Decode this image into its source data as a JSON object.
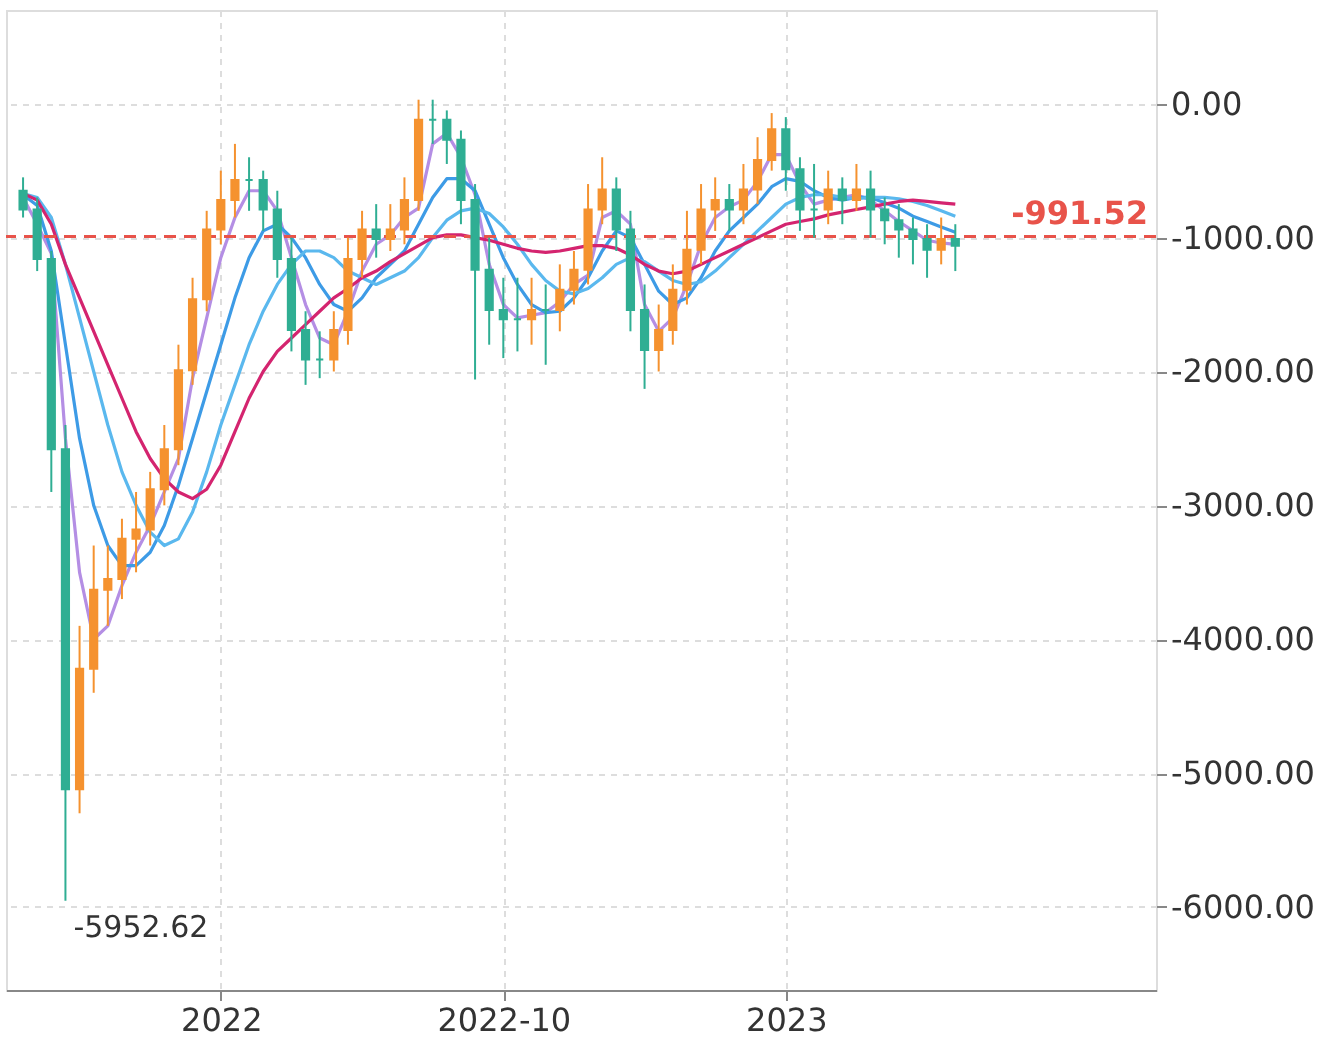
{
  "chart_data": {
    "type": "candlestick",
    "categories": [
      null,
      null,
      null,
      null,
      null,
      null,
      null,
      null,
      null,
      null,
      null,
      null,
      null,
      null,
      "2022",
      null,
      null,
      null,
      null,
      null,
      null,
      null,
      null,
      null,
      null,
      null,
      null,
      null,
      null,
      null,
      null,
      null,
      null,
      null,
      "2022-10",
      null,
      null,
      null,
      null,
      null,
      null,
      null,
      null,
      null,
      null,
      null,
      null,
      null,
      null,
      null,
      null,
      null,
      null,
      null,
      "2023",
      null,
      null,
      null,
      null,
      null,
      null,
      null,
      null,
      null,
      null,
      null,
      null,
      null,
      null,
      null,
      null,
      null,
      null,
      null,
      null,
      null,
      null,
      null,
      null,
      null
    ],
    "ohlc": [
      [
        -650,
        -550,
        -850,
        -790
      ],
      [
        -790,
        -700,
        -1250,
        -1160
      ],
      [
        -1160,
        -1100,
        -2900,
        -2580
      ],
      [
        -2580,
        -2400,
        -5952.62,
        -5120
      ],
      [
        -5120,
        -3900,
        -5300,
        -4220
      ],
      [
        -4220,
        -3300,
        -4400,
        -3630
      ],
      [
        -3630,
        -3300,
        -3900,
        -3550
      ],
      [
        -3550,
        -3100,
        -3700,
        -3250
      ],
      [
        -3250,
        -2900,
        -3500,
        -3180
      ],
      [
        -3180,
        -2750,
        -3300,
        -2880
      ],
      [
        -2880,
        -2400,
        -3000,
        -2580
      ],
      [
        -2580,
        -1800,
        -2700,
        -1990
      ],
      [
        -1990,
        -1300,
        -2100,
        -1460
      ],
      [
        -1460,
        -800,
        -1550,
        -940
      ],
      [
        -940,
        -500,
        -1050,
        -720
      ],
      [
        -720,
        -300,
        -850,
        -570
      ],
      [
        -570,
        -400,
        -800,
        -570
      ],
      [
        -570,
        -500,
        -950,
        -790
      ],
      [
        -790,
        -650,
        -1300,
        -1160
      ],
      [
        -1160,
        -1000,
        -1850,
        -1690
      ],
      [
        -1690,
        -1550,
        -2100,
        -1910
      ],
      [
        -1910,
        -1700,
        -2050,
        -1910
      ],
      [
        -1910,
        -1550,
        -2000,
        -1690
      ],
      [
        -1690,
        -1000,
        -1800,
        -1160
      ],
      [
        -1160,
        -800,
        -1300,
        -940
      ],
      [
        -940,
        -750,
        -1150,
        -1010
      ],
      [
        -1010,
        -750,
        -1100,
        -940
      ],
      [
        -940,
        -550,
        -1050,
        -720
      ],
      [
        -720,
        30,
        -800,
        -120
      ],
      [
        -120,
        30,
        -300,
        -120
      ],
      [
        -120,
        -50,
        -450,
        -270
      ],
      [
        -270,
        -200,
        -900,
        -720
      ],
      [
        -720,
        -600,
        -2060,
        -1240
      ],
      [
        -1240,
        -1000,
        -1800,
        -1540
      ],
      [
        -1540,
        -1300,
        -1900,
        -1610
      ],
      [
        -1610,
        -1300,
        -1850,
        -1610
      ],
      [
        -1610,
        -1300,
        -1800,
        -1540
      ],
      [
        -1540,
        -1350,
        -1950,
        -1540
      ],
      [
        -1540,
        -1200,
        -1700,
        -1390
      ],
      [
        -1390,
        -1100,
        -1500,
        -1240
      ],
      [
        -1240,
        -600,
        -1350,
        -790
      ],
      [
        -790,
        -400,
        -900,
        -640
      ],
      [
        -640,
        -550,
        -1100,
        -940
      ],
      [
        -940,
        -800,
        -1700,
        -1540
      ],
      [
        -1540,
        -1350,
        -2130,
        -1840
      ],
      [
        -1840,
        -1500,
        -2000,
        -1690
      ],
      [
        -1690,
        -1200,
        -1800,
        -1390
      ],
      [
        -1390,
        -800,
        -1500,
        -1090
      ],
      [
        -1090,
        -600,
        -1200,
        -790
      ],
      [
        -790,
        -550,
        -950,
        -720
      ],
      [
        -720,
        -600,
        -950,
        -790
      ],
      [
        -790,
        -450,
        -900,
        -640
      ],
      [
        -640,
        -250,
        -750,
        -420
      ],
      [
        -420,
        -70,
        -500,
        -190
      ],
      [
        -190,
        -100,
        -650,
        -490
      ],
      [
        -490,
        -400,
        -950,
        -790
      ],
      [
        -790,
        -450,
        -1000,
        -790
      ],
      [
        -790,
        -500,
        -900,
        -640
      ],
      [
        -640,
        -550,
        -900,
        -720
      ],
      [
        -720,
        -450,
        -800,
        -640
      ],
      [
        -640,
        -500,
        -1000,
        -790
      ],
      [
        -790,
        -700,
        -1050,
        -870
      ],
      [
        -870,
        -750,
        -1150,
        -940
      ],
      [
        -940,
        -850,
        -1200,
        -1010
      ],
      [
        -1010,
        -900,
        -1300,
        -1090
      ],
      [
        -1090,
        -850,
        -1200,
        -1010
      ],
      [
        -1010,
        -900,
        -1250,
        -1060
      ],
      null,
      null,
      null,
      null,
      null,
      null,
      null,
      null,
      null,
      null,
      null,
      null,
      null
    ],
    "colors": [
      "#2fae93",
      "#2fae93",
      "#2fae93",
      "#2fae93",
      "#f5922f",
      "#f5922f",
      "#f5922f",
      "#f5922f",
      "#f5922f",
      "#f5922f",
      "#f5922f",
      "#f5922f",
      "#f5922f",
      "#f5922f",
      "#f5922f",
      "#f5922f",
      "#2fae93",
      "#2fae93",
      "#2fae93",
      "#2fae93",
      "#2fae93",
      "#2fae93",
      "#f5922f",
      "#f5922f",
      "#f5922f",
      "#2fae93",
      "#f5922f",
      "#f5922f",
      "#f5922f",
      "#2fae93",
      "#2fae93",
      "#2fae93",
      "#2fae93",
      "#2fae93",
      "#2fae93",
      "#2fae93",
      "#f5922f",
      "#2fae93",
      "#f5922f",
      "#f5922f",
      "#f5922f",
      "#f5922f",
      "#2fae93",
      "#2fae93",
      "#2fae93",
      "#f5922f",
      "#f5922f",
      "#f5922f",
      "#f5922f",
      "#f5922f",
      "#2fae93",
      "#f5922f",
      "#f5922f",
      "#f5922f",
      "#2fae93",
      "#2fae93",
      "#2fae93",
      "#f5922f",
      "#2fae93",
      "#f5922f",
      "#2fae93",
      "#2fae93",
      "#2fae93",
      "#2fae93",
      "#2fae93",
      "#f5922f",
      "#2fae93",
      null,
      null,
      null,
      null,
      null,
      null,
      null,
      null,
      null,
      null,
      null,
      null,
      null
    ],
    "series": [
      {
        "type": "line",
        "color": "#b48ee4",
        "values": [
          -700,
          -900,
          -1120,
          -2500,
          -3500,
          -4000,
          -3900,
          -3600,
          -3350,
          -3150,
          -2900,
          -2650,
          -2050,
          -1600,
          -1150,
          -850,
          -650,
          -650,
          -800,
          -1150,
          -1500,
          -1750,
          -1800,
          -1550,
          -1250,
          -1050,
          -980,
          -850,
          -780,
          -300,
          -220,
          -400,
          -680,
          -1200,
          -1500,
          -1600,
          -1580,
          -1560,
          -1480,
          -1350,
          -1280,
          -850,
          -800,
          -900,
          -1500,
          -1700,
          -1600,
          -1350,
          -1050,
          -850,
          -770,
          -720,
          -580,
          -380,
          -380,
          -600,
          -750,
          -720,
          -700,
          -680,
          -720,
          -800,
          -880,
          -950,
          -1020,
          -1040,
          -1050,
          null,
          null,
          null,
          null,
          null,
          null,
          null,
          null,
          null,
          null,
          null,
          null,
          null
        ]
      },
      {
        "type": "line",
        "color": "#3d9be6",
        "values": [
          -680,
          -760,
          -1100,
          -1800,
          -2500,
          -3000,
          -3300,
          -3450,
          -3450,
          -3350,
          -3150,
          -2850,
          -2500,
          -2150,
          -1800,
          -1450,
          -1150,
          -950,
          -900,
          -1000,
          -1150,
          -1350,
          -1500,
          -1550,
          -1450,
          -1300,
          -1200,
          -1100,
          -900,
          -700,
          -560,
          -560,
          -650,
          -900,
          -1150,
          -1350,
          -1500,
          -1560,
          -1550,
          -1450,
          -1300,
          -1100,
          -950,
          -1000,
          -1200,
          -1400,
          -1500,
          -1450,
          -1300,
          -1100,
          -950,
          -850,
          -750,
          -620,
          -560,
          -580,
          -650,
          -700,
          -720,
          -700,
          -700,
          -740,
          -780,
          -840,
          -880,
          -920,
          -960,
          null,
          null,
          null,
          null,
          null,
          null,
          null,
          null,
          null,
          null,
          null,
          null,
          null
        ]
      },
      {
        "type": "line",
        "color": "#5ab8ee",
        "values": [
          -670,
          -700,
          -850,
          -1200,
          -1600,
          -2000,
          -2400,
          -2750,
          -3000,
          -3200,
          -3300,
          -3250,
          -3050,
          -2750,
          -2400,
          -2100,
          -1800,
          -1550,
          -1350,
          -1200,
          -1100,
          -1100,
          -1150,
          -1250,
          -1300,
          -1350,
          -1300,
          -1250,
          -1150,
          -1000,
          -870,
          -800,
          -780,
          -820,
          -920,
          -1050,
          -1200,
          -1320,
          -1400,
          -1420,
          -1380,
          -1300,
          -1200,
          -1150,
          -1180,
          -1250,
          -1320,
          -1350,
          -1330,
          -1250,
          -1150,
          -1050,
          -950,
          -850,
          -750,
          -700,
          -680,
          -680,
          -700,
          -710,
          -700,
          -700,
          -710,
          -730,
          -760,
          -800,
          -840,
          null,
          null,
          null,
          null,
          null,
          null,
          null,
          null,
          null,
          null,
          null,
          null,
          null
        ]
      },
      {
        "type": "line",
        "color": "#d4246f",
        "values": [
          -670,
          -720,
          -900,
          -1200,
          -1450,
          -1700,
          -1950,
          -2200,
          -2450,
          -2650,
          -2800,
          -2900,
          -2950,
          -2880,
          -2700,
          -2450,
          -2200,
          -2000,
          -1850,
          -1750,
          -1650,
          -1550,
          -1450,
          -1380,
          -1300,
          -1250,
          -1180,
          -1120,
          -1060,
          -1000,
          -980,
          -980,
          -1000,
          -1020,
          -1050,
          -1080,
          -1100,
          -1110,
          -1100,
          -1080,
          -1060,
          -1060,
          -1080,
          -1130,
          -1200,
          -1250,
          -1270,
          -1250,
          -1200,
          -1150,
          -1100,
          -1050,
          -1000,
          -950,
          -900,
          -880,
          -860,
          -830,
          -810,
          -790,
          -770,
          -750,
          -730,
          -720,
          -730,
          -740,
          -750,
          null,
          null,
          null,
          null,
          null,
          null,
          null,
          null,
          null,
          null,
          null,
          null,
          null
        ]
      }
    ],
    "ylim": [
      -6620,
      700
    ],
    "yticks": [
      {
        "value": 0,
        "label": "0.00"
      },
      {
        "value": -1000,
        "label": "-1000.00"
      },
      {
        "value": -2000,
        "label": "-2000.00"
      },
      {
        "value": -3000,
        "label": "-3000.00"
      },
      {
        "value": -4000,
        "label": "-4000.00"
      },
      {
        "value": -5000,
        "label": "-5000.00"
      },
      {
        "value": -6000,
        "label": "-6000.00"
      }
    ],
    "ref_lines": [
      {
        "axis": "y",
        "value": -991.52,
        "label": "-991.52",
        "color": "#e8534a",
        "line_style": "dashed"
      }
    ],
    "annotations": [
      "-5952.62"
    ],
    "grid": true
  }
}
